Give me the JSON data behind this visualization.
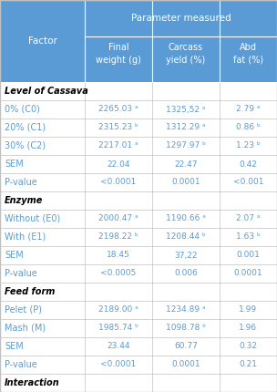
{
  "header_bg": "#5B9BD5",
  "header_text_color": "#FFFFFF",
  "border_color": "#C0C0C0",
  "data_text_color": "#5B9BD5",
  "title": "Parameter measured",
  "col0_header": "Factor",
  "col_headers_line1": [
    "Final",
    "Carcass",
    "Abd"
  ],
  "col_headers_line2": [
    "weight (g)",
    "yield (%)",
    "fat (%)"
  ],
  "rows": [
    {
      "type": "section",
      "col0": "Level of Cassava",
      "cols": [
        "",
        "",
        ""
      ]
    },
    {
      "type": "data",
      "col0": "0% (C0)",
      "cols": [
        "2265.03 ᵃ",
        "1325,52 ᵃ",
        "2.79 ᵃ"
      ]
    },
    {
      "type": "data",
      "col0": "20% (C1)",
      "cols": [
        "2315.23 ᵇ",
        "1312.29 ᵃ",
        "0.86 ᵇ"
      ]
    },
    {
      "type": "data",
      "col0": "30% (C2)",
      "cols": [
        "2217.01 ᵃ",
        "1297.97 ᵇ",
        "1.23 ᵇ"
      ]
    },
    {
      "type": "data",
      "col0": "SEM",
      "cols": [
        "22.04",
        "22.47",
        "0.42"
      ]
    },
    {
      "type": "data",
      "col0": "P-value",
      "cols": [
        "<0.0001",
        "0.0001",
        "<0.001"
      ]
    },
    {
      "type": "section",
      "col0": "Enzyme",
      "cols": [
        "",
        "",
        ""
      ]
    },
    {
      "type": "data",
      "col0": "Without (E0)",
      "cols": [
        "2000.47 ᵃ",
        "1190.66 ᵃ",
        "2.07 ᵃ"
      ]
    },
    {
      "type": "data",
      "col0": "With (E1)",
      "cols": [
        "2198.22 ᵇ",
        "1208.44 ᵇ",
        "1.63 ᵇ"
      ]
    },
    {
      "type": "data",
      "col0": "SEM",
      "cols": [
        "18.45",
        "37,22",
        "0.001"
      ]
    },
    {
      "type": "data",
      "col0": "P-value",
      "cols": [
        "<0.0005",
        "0.006",
        "0.0001"
      ]
    },
    {
      "type": "section",
      "col0": "Feed form",
      "cols": [
        "",
        "",
        ""
      ]
    },
    {
      "type": "data",
      "col0": "Pelet (P)",
      "cols": [
        "2189.00 ᵃ",
        "1234.89 ᵃ",
        "1.99"
      ]
    },
    {
      "type": "data",
      "col0": "Mash (M)",
      "cols": [
        "1985.74 ᵇ",
        "1098.78 ᵇ",
        "1.96"
      ]
    },
    {
      "type": "data",
      "col0": "SEM",
      "cols": [
        "23.44",
        "60.77",
        "0.32"
      ]
    },
    {
      "type": "data",
      "col0": "P-value",
      "cols": [
        "<0.0001",
        "0.0001",
        "0.21"
      ]
    },
    {
      "type": "section",
      "col0": "Interaction",
      "cols": [
        "",
        "",
        ""
      ]
    }
  ],
  "figw": 3.04,
  "figh": 4.3,
  "dpi": 100
}
